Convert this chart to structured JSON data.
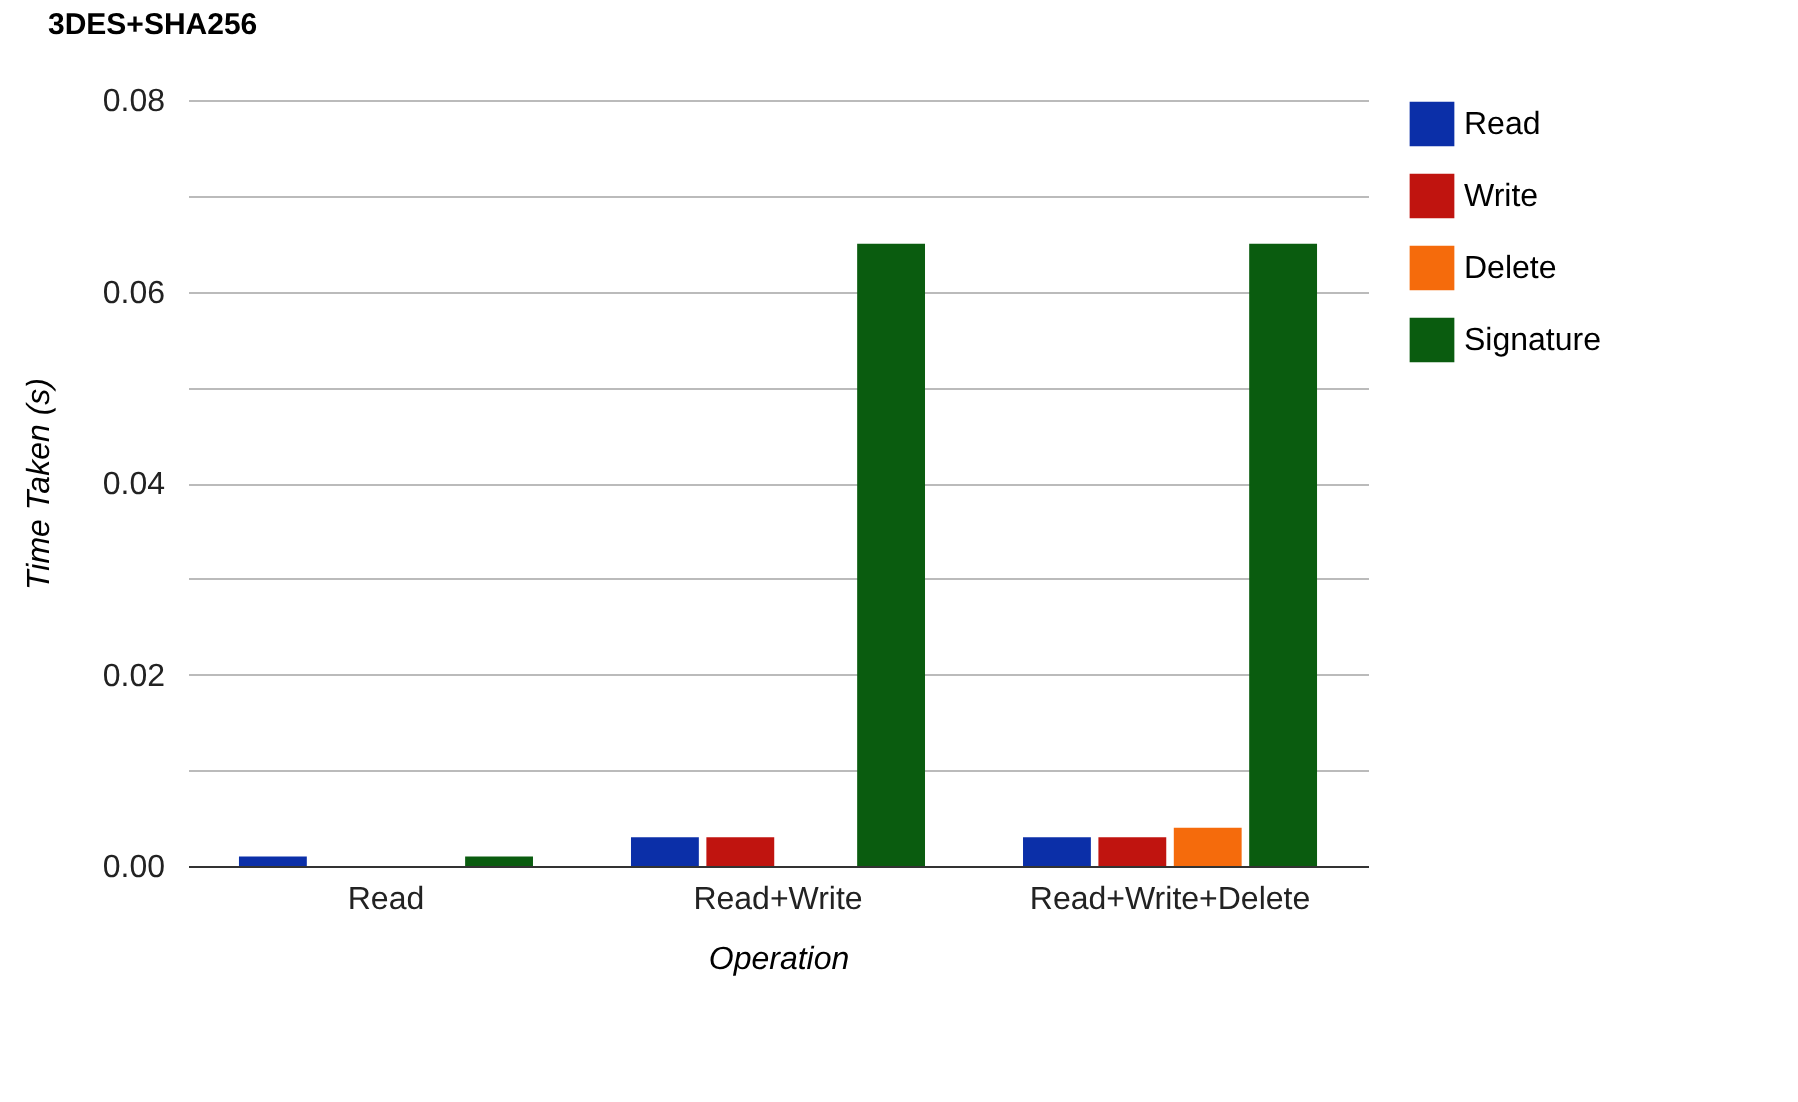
{
  "chart_data": {
    "type": "bar",
    "title": "3DES+SHA256",
    "xlabel": "Operation",
    "ylabel": "Time Taken (s)",
    "categories": [
      "Read",
      "Read+Write",
      "Read+Write+Delete"
    ],
    "series": [
      {
        "name": "Read",
        "color": "#0b2fa8",
        "values": [
          0.001,
          0.003,
          0.003
        ]
      },
      {
        "name": "Write",
        "color": "#c0140f",
        "values": [
          0,
          0.003,
          0.003
        ]
      },
      {
        "name": "Delete",
        "color": "#f56b0c",
        "values": [
          0,
          0,
          0.004
        ]
      },
      {
        "name": "Signature",
        "color": "#0a5c0f",
        "values": [
          0.001,
          0.065,
          0.065
        ]
      }
    ],
    "ylim": [
      0,
      0.08
    ],
    "yticks": [
      {
        "value": 0,
        "label": "0.00"
      },
      {
        "value": 0.01,
        "label": null
      },
      {
        "value": 0.02,
        "label": "0.02"
      },
      {
        "value": 0.03,
        "label": null
      },
      {
        "value": 0.04,
        "label": "0.04"
      },
      {
        "value": 0.05,
        "label": null
      },
      {
        "value": 0.06,
        "label": "0.06"
      },
      {
        "value": 0.07,
        "label": null
      },
      {
        "value": 0.08,
        "label": "0.08"
      }
    ],
    "grid": true,
    "legend": "right"
  }
}
